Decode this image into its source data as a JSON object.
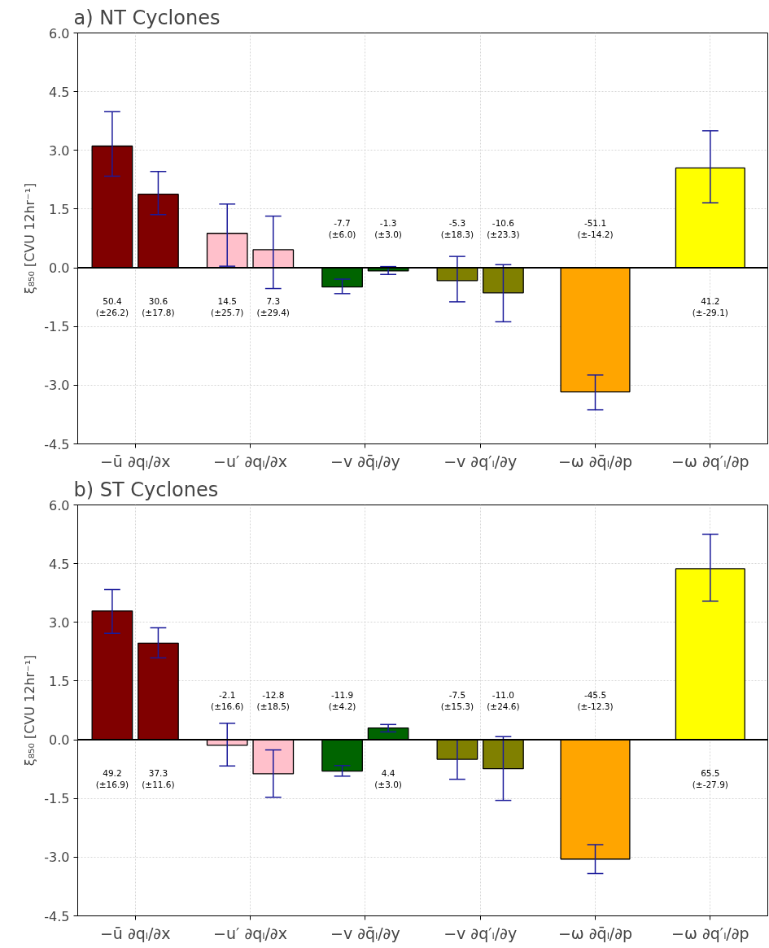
{
  "chart_data": [
    {
      "type": "bar",
      "title": "a) NT Cyclones",
      "ylabel": "ξ₈₅₀ [CVU 12hr⁻¹]",
      "categories": [
        "−ū ∂qₗ/∂x",
        "−u′ ∂qₗ/∂x",
        "−v ∂q̄ₗ/∂y",
        "−v ∂q′ₗ/∂y",
        "−ω ∂q̄ₗ/∂p",
        "−ω ∂q′ₗ/∂p"
      ],
      "series": [
        {
          "colors": [
            "#800000",
            "#ffc0cb",
            "#006400",
            "#808000",
            "#ffa500",
            "#ffff00"
          ],
          "values": [
            3.11,
            0.88,
            -0.49,
            -0.33,
            -3.17,
            2.55
          ],
          "errors": [
            [
              2.34,
              3.99
            ],
            [
              0.04,
              1.63
            ],
            [
              -0.66,
              -0.29
            ],
            [
              -0.87,
              0.29
            ],
            [
              -3.63,
              -2.74
            ],
            [
              1.66,
              3.5
            ]
          ]
        },
        {
          "colors": [
            "#800000",
            "#ffc0cb",
            "#006400",
            "#808000",
            null,
            null
          ],
          "values": [
            1.88,
            0.46,
            -0.08,
            -0.64,
            null,
            null
          ],
          "errors": [
            [
              1.36,
              2.46
            ],
            [
              -0.53,
              1.32
            ],
            [
              -0.17,
              0.03
            ],
            [
              -1.38,
              0.08
            ],
            null,
            null
          ]
        }
      ],
      "annotations": [
        "50.4\n(±26.2)",
        "30.6\n(±17.8)",
        "14.5\n(±25.7)",
        "7.3\n(±29.4)",
        "-7.7\n(±6.0)",
        "-1.3\n(±3.0)",
        "-5.3\n(±18.3)",
        "-10.6\n(±23.3)",
        "-51.1\n(±-14.2)",
        "41.2\n(±-29.1)"
      ],
      "ylim": [
        -4.5,
        6.0
      ],
      "yticks": [
        {
          "value": -4.5,
          "label": "-4.5"
        },
        {
          "value": -3,
          "label": "-3.0"
        },
        {
          "value": -1.5,
          "label": "-1.5"
        },
        {
          "value": 0,
          "label": "0.0"
        },
        {
          "value": 1.5,
          "label": "1.5"
        },
        {
          "value": 3,
          "label": "3.0"
        },
        {
          "value": 4.5,
          "label": "4.5"
        },
        {
          "value": 6,
          "label": "6.0"
        }
      ],
      "ref_lines": [
        {
          "axis": "y",
          "value": 0,
          "color": "#000000"
        }
      ],
      "grid": true,
      "legend": false
    },
    {
      "type": "bar",
      "title": "b) ST Cyclones",
      "ylabel": "ξ₈₅₀ [CVU 12hr⁻¹]",
      "categories": [
        "−ū ∂qₗ/∂x",
        "−u′ ∂qₗ/∂x",
        "−v ∂q̄ₗ/∂y",
        "−v ∂q′ₗ/∂y",
        "−ω ∂q̄ₗ/∂p",
        "−ω ∂q′ₗ/∂p"
      ],
      "series": [
        {
          "colors": [
            "#800000",
            "#ffc0cb",
            "#006400",
            "#808000",
            "#ffa500",
            "#ffff00"
          ],
          "values": [
            3.29,
            -0.14,
            -0.8,
            -0.5,
            -3.05,
            4.37
          ],
          "errors": [
            [
              2.72,
              3.84
            ],
            [
              -0.67,
              0.42
            ],
            [
              -0.93,
              -0.66
            ],
            [
              -1.01,
              0.0
            ],
            [
              -3.42,
              -2.68
            ],
            [
              3.54,
              5.25
            ]
          ]
        },
        {
          "colors": [
            "#800000",
            "#ffc0cb",
            "#006400",
            "#808000",
            null,
            null
          ],
          "values": [
            2.47,
            -0.87,
            0.3,
            -0.74,
            null,
            null
          ],
          "errors": [
            [
              2.09,
              2.86
            ],
            [
              -1.47,
              -0.26
            ],
            [
              0.2,
              0.39
            ],
            [
              -1.55,
              0.08
            ],
            null,
            null
          ]
        }
      ],
      "annotations": [
        "49.2\n(±16.9)",
        "37.3\n(±11.6)",
        "-2.1\n(±16.6)",
        "-12.8\n(±18.5)",
        "-11.9\n(±4.2)",
        "4.4\n(±3.0)",
        "-7.5\n(±15.3)",
        "-11.0\n(±24.6)",
        "-45.5\n(±-12.3)",
        "65.5\n(±-27.9)"
      ],
      "ylim": [
        -4.5,
        6.0
      ],
      "yticks": [
        {
          "value": -4.5,
          "label": "-4.5"
        },
        {
          "value": -3,
          "label": "-3.0"
        },
        {
          "value": -1.5,
          "label": "-1.5"
        },
        {
          "value": 0,
          "label": "0.0"
        },
        {
          "value": 1.5,
          "label": "1.5"
        },
        {
          "value": 3,
          "label": "3.0"
        },
        {
          "value": 4.5,
          "label": "4.5"
        },
        {
          "value": 6,
          "label": "6.0"
        }
      ],
      "ref_lines": [
        {
          "axis": "y",
          "value": 0,
          "color": "#000000"
        }
      ],
      "grid": true,
      "legend": false
    }
  ]
}
